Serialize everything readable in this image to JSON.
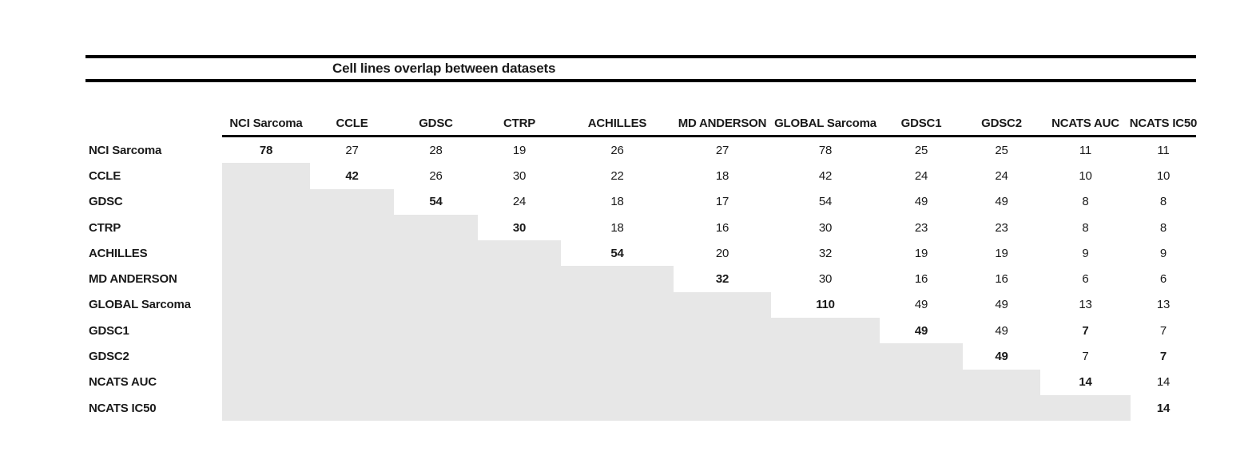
{
  "title": "Cell lines overlap between datasets",
  "colors": {
    "background": "#ffffff",
    "rule": "#000000",
    "text": "#1a1a1a",
    "shaded_cell": "#e7e7e7"
  },
  "chart_data": {
    "type": "table",
    "title": "Cell lines overlap between datasets",
    "layout": "upper-triangular overlap matrix; lower triangle shaded gray with no values; diagonal values bold",
    "row_and_column_labels": [
      "NCI Sarcoma",
      "CCLE",
      "GDSC",
      "CTRP",
      "ACHILLES",
      "MD ANDERSON",
      "GLOBAL Sarcoma",
      "GDSC1",
      "GDSC2",
      "NCATS AUC",
      "NCATS IC50"
    ],
    "matrix_upper_triangle": [
      [
        78,
        27,
        28,
        19,
        26,
        27,
        78,
        25,
        25,
        11,
        11
      ],
      [
        null,
        42,
        26,
        30,
        22,
        18,
        42,
        24,
        24,
        10,
        10
      ],
      [
        null,
        null,
        54,
        24,
        18,
        17,
        54,
        49,
        49,
        8,
        8
      ],
      [
        null,
        null,
        null,
        30,
        18,
        16,
        30,
        23,
        23,
        8,
        8
      ],
      [
        null,
        null,
        null,
        null,
        54,
        20,
        32,
        19,
        19,
        9,
        9
      ],
      [
        null,
        null,
        null,
        null,
        null,
        32,
        30,
        16,
        16,
        6,
        6
      ],
      [
        null,
        null,
        null,
        null,
        null,
        null,
        110,
        49,
        49,
        13,
        13
      ],
      [
        null,
        null,
        null,
        null,
        null,
        null,
        null,
        49,
        49,
        7,
        7
      ],
      [
        null,
        null,
        null,
        null,
        null,
        null,
        null,
        null,
        49,
        7,
        7
      ],
      [
        null,
        null,
        null,
        null,
        null,
        null,
        null,
        null,
        null,
        14,
        14
      ],
      [
        null,
        null,
        null,
        null,
        null,
        null,
        null,
        null,
        null,
        null,
        14
      ]
    ],
    "bold_cells": [
      [
        0,
        0
      ],
      [
        1,
        1
      ],
      [
        2,
        2
      ],
      [
        3,
        3
      ],
      [
        4,
        4
      ],
      [
        5,
        5
      ],
      [
        6,
        6
      ],
      [
        7,
        7
      ],
      [
        8,
        8
      ],
      [
        9,
        9
      ],
      [
        10,
        10
      ],
      [
        7,
        9
      ],
      [
        8,
        10
      ]
    ]
  }
}
